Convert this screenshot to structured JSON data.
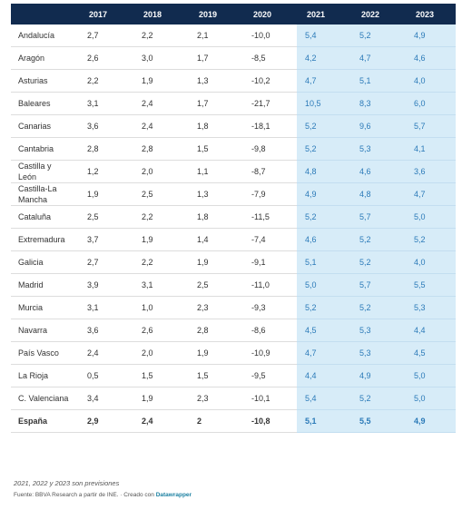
{
  "table": {
    "header": [
      "",
      "2017",
      "2018",
      "2019",
      "2020",
      "2021",
      "2022",
      "2023"
    ],
    "rows": [
      [
        "Andalucía",
        "2,7",
        "2,2",
        "2,1",
        "-10,0",
        "5,4",
        "5,2",
        "4,9"
      ],
      [
        "Aragón",
        "2,6",
        "3,0",
        "1,7",
        "-8,5",
        "4,2",
        "4,7",
        "4,6"
      ],
      [
        "Asturias",
        "2,2",
        "1,9",
        "1,3",
        "-10,2",
        "4,7",
        "5,1",
        "4,0"
      ],
      [
        "Baleares",
        "3,1",
        "2,4",
        "1,7",
        "-21,7",
        "10,5",
        "8,3",
        "6,0"
      ],
      [
        "Canarias",
        "3,6",
        "2,4",
        "1,8",
        "-18,1",
        "5,2",
        "9,6",
        "5,7"
      ],
      [
        "Cantabria",
        "2,8",
        "2,8",
        "1,5",
        "-9,8",
        "5,2",
        "5,3",
        "4,1"
      ],
      [
        "Castilla y León",
        "1,2",
        "2,0",
        "1,1",
        "-8,7",
        "4,8",
        "4,6",
        "3,6"
      ],
      [
        "Castilla-La Mancha",
        "1,9",
        "2,5",
        "1,3",
        "-7,9",
        "4,9",
        "4,8",
        "4,7"
      ],
      [
        "Cataluña",
        "2,5",
        "2,2",
        "1,8",
        "-11,5",
        "5,2",
        "5,7",
        "5,0"
      ],
      [
        "Extremadura",
        "3,7",
        "1,9",
        "1,4",
        "-7,4",
        "4,6",
        "5,2",
        "5,2"
      ],
      [
        "Galicia",
        "2,7",
        "2,2",
        "1,9",
        "-9,1",
        "5,1",
        "5,2",
        "4,0"
      ],
      [
        "Madrid",
        "3,9",
        "3,1",
        "2,5",
        "-11,0",
        "5,0",
        "5,7",
        "5,5"
      ],
      [
        "Murcia",
        "3,1",
        "1,0",
        "2,3",
        "-9,3",
        "5,2",
        "5,2",
        "5,3"
      ],
      [
        "Navarra",
        "3,6",
        "2,6",
        "2,8",
        "-8,6",
        "4,5",
        "5,3",
        "4,4"
      ],
      [
        "País Vasco",
        "2,4",
        "2,0",
        "1,9",
        "-10,9",
        "4,7",
        "5,3",
        "4,5"
      ],
      [
        "La Rioja",
        "0,5",
        "1,5",
        "1,5",
        "-9,5",
        "4,4",
        "4,9",
        "5,0"
      ],
      [
        "C. Valenciana",
        "3,4",
        "1,9",
        "2,3",
        "-10,1",
        "5,4",
        "5,2",
        "5,0"
      ],
      [
        "España",
        "2,9",
        "2,4",
        "2",
        "-10,8",
        "5,1",
        "5,5",
        "4,9"
      ]
    ]
  },
  "footnote": "2021, 2022 y 2023 son previsiones",
  "source": {
    "text": "Fuente: BBVA Research a partir de INE. · Creado con",
    "link": "Datawrapper"
  }
}
